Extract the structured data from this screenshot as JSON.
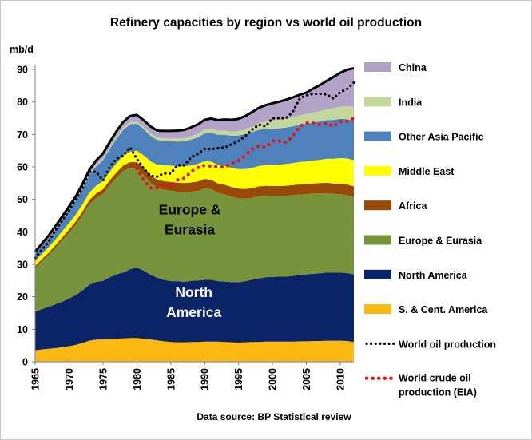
{
  "chart_data": {
    "type": "area",
    "title": "Refinery capacities by region vs world oil production",
    "ylabel": "mb/d",
    "xlabel": "",
    "source": "Data source: BP Statistical review",
    "xlim": [
      1965,
      2012
    ],
    "ylim": [
      0,
      95
    ],
    "yticks": [
      0,
      10,
      20,
      30,
      40,
      50,
      60,
      70,
      80,
      90
    ],
    "xticks": [
      1965,
      1970,
      1975,
      1980,
      1985,
      1990,
      1995,
      2000,
      2005,
      2010
    ],
    "grid": false,
    "legend_position": "right",
    "stacked": true,
    "x": [
      1965,
      1966,
      1967,
      1968,
      1969,
      1970,
      1971,
      1972,
      1973,
      1974,
      1975,
      1976,
      1977,
      1978,
      1979,
      1980,
      1981,
      1982,
      1983,
      1984,
      1985,
      1986,
      1987,
      1988,
      1989,
      1990,
      1991,
      1992,
      1993,
      1994,
      1995,
      1996,
      1997,
      1998,
      1999,
      2000,
      2001,
      2002,
      2003,
      2004,
      2005,
      2006,
      2007,
      2008,
      2009,
      2010,
      2011,
      2012
    ],
    "series": [
      {
        "name": "S. & Cent. America",
        "color": "#fdb913",
        "values": [
          3.5,
          3.8,
          4.0,
          4.2,
          4.5,
          4.8,
          5.2,
          5.8,
          6.5,
          6.8,
          6.9,
          7.0,
          7.1,
          7.2,
          7.3,
          7.3,
          7.1,
          6.9,
          6.6,
          6.3,
          6.1,
          6.0,
          6.0,
          6.1,
          6.1,
          6.2,
          6.2,
          6.2,
          6.1,
          6.0,
          5.9,
          6.0,
          6.1,
          6.1,
          6.2,
          6.2,
          6.2,
          6.2,
          6.2,
          6.3,
          6.3,
          6.4,
          6.4,
          6.5,
          6.5,
          6.5,
          6.4,
          6.1
        ]
      },
      {
        "name": "North America",
        "color": "#0b2467",
        "values": [
          11.9,
          12.4,
          12.9,
          13.5,
          14.0,
          14.7,
          15.3,
          16.2,
          17.2,
          17.8,
          18.0,
          19.0,
          19.8,
          20.3,
          21.2,
          21.7,
          21.0,
          19.9,
          19.3,
          18.9,
          18.7,
          18.8,
          18.6,
          18.8,
          18.9,
          19.0,
          19.0,
          18.6,
          18.6,
          18.5,
          18.6,
          18.8,
          19.2,
          19.6,
          19.8,
          19.9,
          20.0,
          20.0,
          20.2,
          20.4,
          20.6,
          20.7,
          20.8,
          21.0,
          21.0,
          21.0,
          20.9,
          20.8
        ]
      },
      {
        "name": "Europe & Eurasia",
        "color": "#77933c",
        "values": [
          13.6,
          14.8,
          16.0,
          17.4,
          18.9,
          20.2,
          21.6,
          23.1,
          24.8,
          25.8,
          26.8,
          28.4,
          29.8,
          31.3,
          31.2,
          30.5,
          29.4,
          28.3,
          27.7,
          27.8,
          27.9,
          27.6,
          27.6,
          27.5,
          27.6,
          28.2,
          27.9,
          27.2,
          26.8,
          26.3,
          25.8,
          25.4,
          25.2,
          25.3,
          25.2,
          25.0,
          24.9,
          24.9,
          24.9,
          24.8,
          24.7,
          24.7,
          24.6,
          24.4,
          24.2,
          24.1,
          24.0,
          23.8
        ]
      },
      {
        "name": "Africa",
        "color": "#984807",
        "values": [
          0.5,
          0.6,
          0.7,
          0.8,
          0.9,
          1.0,
          1.1,
          1.2,
          1.3,
          1.4,
          1.4,
          1.5,
          1.6,
          1.7,
          1.8,
          2.0,
          2.2,
          2.4,
          2.5,
          2.6,
          2.7,
          2.7,
          2.8,
          2.8,
          2.9,
          2.9,
          2.9,
          2.9,
          3.0,
          3.0,
          3.0,
          3.0,
          3.0,
          3.0,
          3.0,
          3.0,
          3.0,
          3.1,
          3.1,
          3.1,
          3.1,
          3.1,
          3.2,
          3.2,
          3.2,
          3.3,
          3.3,
          3.3
        ]
      },
      {
        "name": "Middle East",
        "color": "#ffff00",
        "values": [
          1.5,
          1.6,
          1.7,
          1.8,
          1.9,
          2.0,
          2.1,
          2.2,
          2.3,
          2.4,
          2.5,
          2.6,
          2.8,
          3.0,
          3.2,
          3.5,
          3.9,
          4.3,
          4.6,
          4.9,
          5.0,
          5.1,
          5.2,
          5.3,
          5.4,
          5.5,
          5.6,
          5.7,
          5.8,
          5.9,
          6.0,
          6.1,
          6.2,
          6.3,
          6.4,
          6.5,
          6.6,
          6.7,
          6.8,
          6.9,
          7.0,
          7.1,
          7.2,
          7.4,
          7.6,
          7.8,
          8.0,
          8.1
        ]
      },
      {
        "name": "Other Asia Pacific",
        "color": "#4f81bd",
        "values": [
          2.4,
          2.6,
          2.9,
          3.2,
          3.6,
          4.0,
          4.4,
          4.9,
          5.5,
          6.0,
          6.5,
          7.1,
          7.6,
          8.0,
          8.4,
          8.3,
          8.1,
          7.8,
          7.6,
          7.5,
          7.5,
          7.6,
          7.7,
          7.9,
          8.2,
          8.5,
          8.9,
          9.3,
          9.6,
          9.9,
          10.4,
          10.8,
          11.0,
          11.1,
          11.1,
          11.2,
          11.2,
          11.2,
          11.3,
          11.5,
          11.6,
          11.7,
          11.8,
          11.9,
          12.0,
          12.1,
          12.1,
          12.2
        ]
      },
      {
        "name": "India",
        "color": "#c3d69b",
        "values": [
          0.2,
          0.2,
          0.2,
          0.3,
          0.3,
          0.3,
          0.3,
          0.4,
          0.4,
          0.5,
          0.5,
          0.5,
          0.6,
          0.6,
          0.7,
          0.7,
          0.7,
          0.8,
          0.8,
          0.9,
          0.9,
          1.0,
          1.0,
          1.1,
          1.1,
          1.2,
          1.3,
          1.3,
          1.3,
          1.3,
          1.3,
          1.5,
          1.8,
          2.1,
          2.3,
          2.5,
          2.6,
          2.7,
          2.8,
          2.9,
          3.0,
          3.1,
          3.2,
          3.3,
          3.6,
          3.8,
          4.0,
          4.2
        ]
      },
      {
        "name": "China",
        "color": "#b2a2c7",
        "values": [
          0.3,
          0.4,
          0.5,
          0.6,
          0.7,
          0.8,
          0.9,
          1.0,
          1.1,
          1.3,
          1.5,
          1.6,
          1.7,
          1.8,
          1.9,
          2.0,
          2.0,
          2.1,
          2.1,
          2.2,
          2.3,
          2.4,
          2.5,
          2.7,
          2.9,
          3.0,
          3.1,
          3.2,
          3.4,
          3.6,
          3.8,
          4.1,
          4.4,
          4.7,
          5.0,
          5.3,
          5.6,
          5.9,
          6.1,
          6.3,
          6.6,
          7.3,
          8.0,
          8.8,
          9.6,
          10.4,
          11.2,
          11.9
        ]
      }
    ],
    "lines": [
      {
        "name": "World oil production",
        "color": "#000000",
        "x": [
          1965,
          1966,
          1967,
          1968,
          1969,
          1970,
          1971,
          1972,
          1973,
          1974,
          1975,
          1976,
          1977,
          1978,
          1979,
          1980,
          1981,
          1982,
          1983,
          1984,
          1985,
          1986,
          1987,
          1988,
          1989,
          1990,
          1991,
          1992,
          1993,
          1994,
          1995,
          1996,
          1997,
          1998,
          1999,
          2000,
          2001,
          2002,
          2003,
          2004,
          2005,
          2006,
          2007,
          2008,
          2009,
          2010,
          2011,
          2012
        ],
        "values": [
          32.0,
          34.5,
          37.0,
          40.5,
          43.5,
          46.5,
          50.0,
          53.5,
          58.5,
          58.5,
          55.8,
          60.0,
          62.5,
          63.5,
          66.0,
          62.5,
          59.5,
          57.3,
          57.0,
          58.0,
          58.0,
          60.5,
          60.5,
          63.0,
          64.0,
          65.5,
          65.5,
          65.8,
          66.0,
          67.0,
          68.0,
          69.5,
          71.5,
          73.0,
          72.5,
          75.0,
          75.0,
          75.0,
          77.0,
          81.0,
          82.0,
          82.5,
          82.5,
          82.3,
          81.0,
          83.0,
          84.0,
          86.0
        ]
      },
      {
        "name": "World crude oil production (EIA)",
        "color": "#e3141a",
        "x": [
          1980,
          1981,
          1982,
          1983,
          1984,
          1985,
          1986,
          1987,
          1988,
          1989,
          1990,
          1991,
          1992,
          1993,
          1994,
          1995,
          1996,
          1997,
          1998,
          1999,
          2000,
          2001,
          2002,
          2003,
          2004,
          2005,
          2006,
          2007,
          2008,
          2009,
          2010,
          2011,
          2012
        ],
        "values": [
          59.5,
          56.0,
          53.5,
          53.5,
          54.5,
          54.0,
          56.0,
          56.5,
          58.5,
          59.8,
          60.5,
          60.2,
          60.0,
          60.0,
          61.0,
          62.0,
          63.5,
          65.5,
          66.5,
          66.0,
          68.0,
          68.0,
          67.5,
          69.5,
          72.5,
          73.5,
          73.5,
          73.0,
          73.5,
          72.5,
          74.0,
          74.0,
          75.0
        ]
      }
    ],
    "annotations": [
      {
        "text_lines": [
          "Europe &",
          "Eurasia"
        ],
        "x": 1987.8,
        "y": 41.0
      },
      {
        "text_lines": [
          "North",
          "America"
        ],
        "x": 1988.4,
        "y": 15.5
      }
    ]
  }
}
